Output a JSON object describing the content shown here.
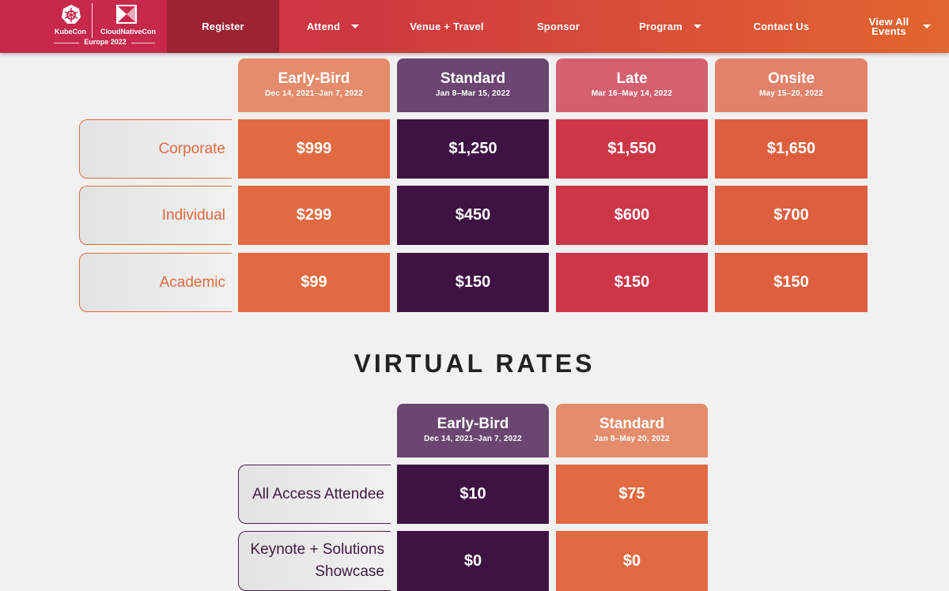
{
  "logo": {
    "kubecon": "KubeCon",
    "cloudnativecon": "CloudNativeCon",
    "edition": "Europe 2022"
  },
  "nav": [
    {
      "label": "Register",
      "caret": false
    },
    {
      "label": "Attend",
      "caret": true
    },
    {
      "label": "Venue + Travel",
      "caret": false
    },
    {
      "label": "Sponsor",
      "caret": false
    },
    {
      "label": "Program",
      "caret": true
    },
    {
      "label": "Contact Us",
      "caret": false
    },
    {
      "label_line1": "View All",
      "label_line2": "Events",
      "caret": true
    }
  ],
  "inperson": {
    "columns": [
      {
        "title": "Early-Bird",
        "dates": "Dec 14, 2021–Jan 7, 2022"
      },
      {
        "title": "Standard",
        "dates": "Jan 8–Mar 15, 2022"
      },
      {
        "title": "Late",
        "dates": "Mar 16–May 14, 2022"
      },
      {
        "title": "Onsite",
        "dates": "May 15–20, 2022"
      }
    ],
    "rows": [
      {
        "label": "Corporate",
        "values": [
          "$999",
          "$1,250",
          "$1,550",
          "$1,650"
        ]
      },
      {
        "label": "Individual",
        "values": [
          "$299",
          "$450",
          "$600",
          "$700"
        ]
      },
      {
        "label": "Academic",
        "values": [
          "$99",
          "$150",
          "$150",
          "$150"
        ]
      }
    ]
  },
  "virtual": {
    "heading": "VIRTUAL RATES",
    "columns": [
      {
        "title": "Early-Bird",
        "dates": "Dec 14, 2021–Jan 7, 2022"
      },
      {
        "title": "Standard",
        "dates": "Jan 8–May 20, 2022"
      }
    ],
    "rows": [
      {
        "label": "All Access Attendee",
        "values": [
          "$10",
          "$75"
        ]
      },
      {
        "label_line1": "Keynote + Solutions",
        "label_line2": "Showcase",
        "values": [
          "$0",
          "$0"
        ]
      }
    ]
  },
  "colors": {
    "nav_active": "#9c2234",
    "orange": "#e26a42",
    "purple_dark": "#3e1343",
    "red": "#cc3647",
    "orange_red": "#de5f3f",
    "hdr_salmon": "#e48c6c",
    "hdr_purple": "#6a4670",
    "hdr_pink": "#d4606f",
    "hdr_peach": "#e2826a"
  }
}
